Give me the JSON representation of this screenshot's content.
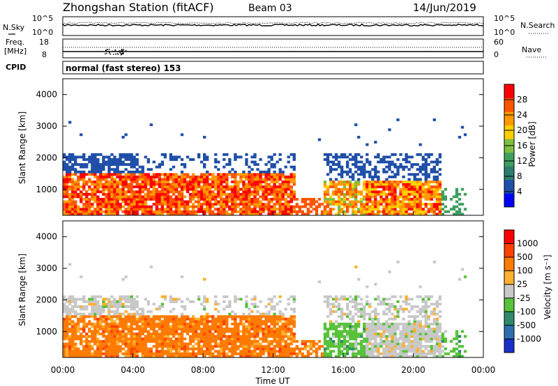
{
  "header": {
    "title": "Zhongshan Station (fitACF)",
    "beam": "Beam 03",
    "date": "14/Jun/2019"
  },
  "noise_panel": {
    "left_label": "N.Sky",
    "left_ticks": [
      "10^5",
      "10^0"
    ],
    "right_ticks": [
      "10^5",
      "10^0"
    ],
    "right_label": "N.Search"
  },
  "freq_panel": {
    "left_label_1": "Freq.",
    "left_label_2": "[MHz]",
    "left_ticks": [
      "18",
      "8"
    ],
    "right_ticks": [
      "60",
      "0"
    ],
    "right_label": "Nave"
  },
  "cpid": {
    "label": "CPID",
    "text": "normal (fast stereo) 153"
  },
  "colors": {
    "power": [
      "#0000ff",
      "#1f4fa8",
      "#2e7d6f",
      "#3f9f5f",
      "#7fbf3f",
      "#ffcf00",
      "#ff9900",
      "#ff5500",
      "#ff0000"
    ],
    "velocity": [
      "#1a2fc8",
      "#2f6fb0",
      "#2e8a6a",
      "#58c23a",
      "#c8c8c8",
      "#ffb030",
      "#ff7a00",
      "#ff4000",
      "#ff0000"
    ]
  },
  "chart_data": [
    {
      "type": "heatmap",
      "name": "power",
      "ylabel": "Slant Range [km]",
      "ylim": [
        180,
        4500
      ],
      "yticks": [
        "1000",
        "2000",
        "3000",
        "4000"
      ],
      "colorbar_label": "Power [dB]",
      "colorbar_ticks": [
        "4",
        "8",
        "12",
        "16",
        "20",
        "24",
        "28"
      ],
      "colorbar_range": [
        0,
        32
      ]
    },
    {
      "type": "heatmap",
      "name": "velocity",
      "ylabel": "Slant Range [km]",
      "ylim": [
        180,
        4500
      ],
      "yticks": [
        "1000",
        "2000",
        "3000",
        "4000"
      ],
      "xticks": [
        "00:00",
        "04:00",
        "08:00",
        "12:00",
        "16:00",
        "20:00",
        "00:00"
      ],
      "xlabel": "Time UT",
      "colorbar_label": "Velocity [m s⁻¹]",
      "colorbar_ticks": [
        "1000",
        "500",
        "100",
        "25",
        "-25",
        "-100",
        "-500",
        "-1000"
      ]
    }
  ]
}
